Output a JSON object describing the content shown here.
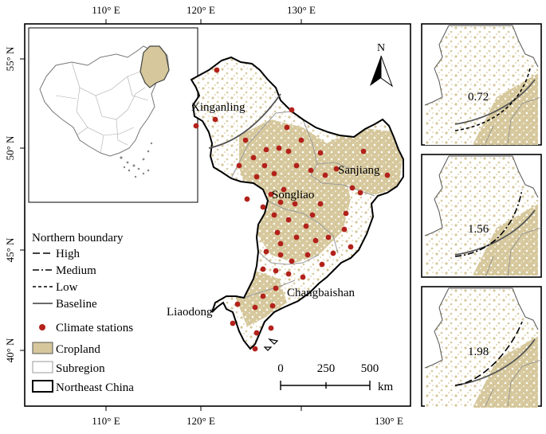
{
  "map": {
    "top_ticks": [
      "110° E",
      "120° E",
      "130° E"
    ],
    "bottom_ticks": [
      "110° E",
      "120° E",
      "130° E"
    ],
    "left_ticks": [
      "55° N",
      "50° N",
      "45° N",
      "40° N"
    ],
    "north_label": "N",
    "regions": {
      "xinganling": "Xinganling",
      "sanjiang": "Sanjiang",
      "songliao": "Songliao",
      "changbaishan": "Changbaishan",
      "liaodong": "Liaodong"
    },
    "scale": {
      "ticks": [
        "0",
        "250",
        "500"
      ],
      "unit": "km"
    }
  },
  "legend": {
    "title": "Northern boundary",
    "items": [
      {
        "label": "High",
        "symbol": "dash-long"
      },
      {
        "label": "Medium",
        "symbol": "dash-dot"
      },
      {
        "label": "Low",
        "symbol": "dash-short"
      },
      {
        "label": "Baseline",
        "symbol": "solid-gray"
      },
      {
        "label": "Climate stations",
        "symbol": "red-dot"
      },
      {
        "label": "Cropland",
        "symbol": "tan-fill"
      },
      {
        "label": "Subregion",
        "symbol": "gray-outline"
      },
      {
        "label": "Northeast China",
        "symbol": "black-outline"
      }
    ]
  },
  "panels": [
    {
      "value": "0.72",
      "line_style": "dash-short"
    },
    {
      "value": "1.56",
      "line_style": "dash-dot"
    },
    {
      "value": "1.98",
      "line_style": "dash-long"
    }
  ],
  "colors": {
    "cropland": "#d6c89c",
    "station": "#b3211b",
    "baseline": "#555555",
    "subregion": "#9a9a9a"
  }
}
